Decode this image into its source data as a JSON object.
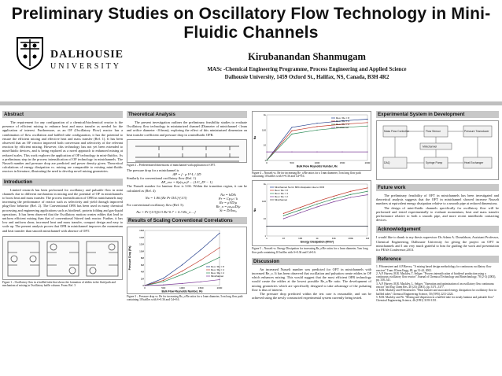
{
  "header": {
    "title": "Preliminary Studies on Oscillatory Flow Technology in Mini-Fluidic Channels",
    "logo_name": "DALHOUSIE",
    "logo_sub": "UNIVERSITY",
    "author": "Kirubanandan Shanmugam",
    "affiliation1": "MASc -Chemical Engineering Programme, Process Engineering and Applied Science",
    "affiliation2": "Dalhousie University, 1459 Oxford St., Halifax, NS, Canada, B3H 4R2"
  },
  "abstract": {
    "heading": "Abstract",
    "text": "The requirement for any configuration of a chemical/biochemical reactor is the presence of efficient mixing to enhance heat and mass transfer as needed for the application of interest. Furthermore, as an OF (Oscillatory Flow) reactor has a combination of flow oscillation and baffled tube configuration, it has the potential to ensure the efficient mixing and effective heat and mass transfer (Ref. 1). It has been observed that an OF reactor improved both conversion and selectivity of the relevant reaction by efficient mixing. However, this technology has not yet been extended to mini-fluidic devices, and is being explored as a novel approach to enhanced mixing at reduced scales. This work explores the application of OF technology in mini-fluidics. As a preliminary step in the process intensification of OF technology in minichannels. The Nusselt number and pressure drop are predicted and power density given. Theoretical calculations of energy dissipation vs. mixing are comparable to existing mini-fluidic reactors in literature, illustrating the need to develop novel mixing geometries."
  },
  "introduction": {
    "heading": "Introduction",
    "text": "Limited research has been performed for oscillatory and pulsatile flow in mini channels due to different mechanism in mixing and the potential of OF in minichannels to boost heat and mass transfer. The process intensification of OFR in minichannels may increasing the performance of reactor such as selectivity and yield through improved plug-flow behavior (Ref. 2). The Conventional OFR has been used in many chemical processing and engineering applications such as biodiesel, protein folding and gas-liquid operations. It has been observed that the Oscillatory motion creates eddies that lead to uniform efficient mixing than that of conventional Stirred tank reactor. Further, it has low and uniform shear, increased heat and mass transfer, compact design and easy to scale up. The present analysis proves that OFR in minichannel improves the momentum and heat transfer than smooth minichannel with absence of OFT.",
    "figure_caption": "Figure 1 – Oscillatory flow in a baffled tube that shows the formation of eddies in the fluid path and mechanism of mixing in Oscillatory baffle column. From: Ref. 3"
  },
  "theory": {
    "heading": "Theoretical Analysis",
    "text": "The present investigation outlines the preliminary feasibility studies to evaluate Oscillatory flow technology in miniaturized channel (Diameter of minichannel <1mm and orifice diameter <0.6mm), exploring the effect of this miniaturized dimension on heat transfer coefficient and pressure drop in a minifluidic OFR.",
    "figure_caption": "Figure 2 – Predetermined dimensions of minichannel with application of OFT.",
    "pressure_text": "The pressure drop for a minichannel is",
    "similarity_text": "Similarly for conventional oscillatory flow (Ref. 1)",
    "nusselt_text": "The Nusselt number for laminar flow is 3.66. Within the transition region, it can be calculated as (Ref. 4)",
    "conv_text": "For conventional oscillatory flow (Ref. 5).",
    "eq1": "ΔP = f · ρ·V²·L / 2D",
    "eq2": "ΔP_osc = 8ρ(x₀ω)² ... (1/C_D² − 1)",
    "eq3": "Nu = 1.86 (Re Pr D/L)^(1/3)",
    "eq4": "Nu = Pr^(1/3)[0.3 Re^0.7 + 0.3 Re_o ...]",
    "side_eqs": [
      "Nu = hD/k",
      "Pr = Cp μ / k",
      "Re = ρVD/μ",
      "Re_o = ρx₀ωD/μ",
      "St = D/4πx₀"
    ]
  },
  "results_conv": {
    "heading": "Results of Scaling Conventional Correlations",
    "figure_caption": "Figure 3 – Pressure drop vs. Re for increasing Re_o/Re ratios for a 1mm diameter, 5cm long flow path containing 10 baffles with S=0.36 and Cd=0.6."
  },
  "fig4": {
    "figure_caption": "Figure 4 – Nusselt vs. Re for increasing Re_o/Re ratios for a 1mm diameter, 5cm long flow path containing 10 baffles with S=0.36 and Cd=0.6."
  },
  "fig5": {
    "figure_caption": "Figure 5 – Nusselt vs. Energy Dissipation for increasing Re_o/Re ratios for a 1mm diameter, 5cm long flow path containing 10 baffles with S=0.36 and Cd=0.6."
  },
  "discussion": {
    "heading": "Discussion",
    "text1": "An increased Nusselt number was predicted for OFT in minichannels with increased Re_o. It has been observed that oscillation and pulsation create eddies in OF which enhances mixing. This would suggest that the most efficient OFR technology would create the eddies at the lowest possible Re_o/Re ratio. The development of mixing geometries which are specifically designed to take advantage of the pulsating flow is thus of interest.",
    "text2": "The pressure drop predicted within the test case is reasonable, and can be achieved using the newly constructed experimental system currently being tested."
  },
  "experimental": {
    "heading": "Experimental System in Development",
    "labels": [
      "Mass Flow Controller",
      "Flow Sensor",
      "Pressure Transducer",
      "DAQ",
      "Syringe Pump",
      "Heat Exchanger",
      "Minichannel"
    ]
  },
  "future": {
    "heading": "Future work",
    "text1": "The preliminary feasibility of OFT in minichannels has been investigated and theoretical analysis suggests that the OFT in minichannel showed increase Nusselt numbers at equivalent energy dissipation relative to a smooth pipe at reduced dimensions.",
    "text2": "The design of mini-fluidic channels specifically for oscillatory flow will be performed and tested experimentally to evaluate momentum, heat and mass transfer performance relative to both a smooth pipe, and more recent minifluidic contacting devices."
  },
  "acknowledgement": {
    "heading": "Acknowledgement",
    "text": "I would like to thank to my thesis supervisor Dr.Adam A. Donaldson, Assistant Professor, Chemical Engineering, Dalhousie University for giving the project on OFT in minichannels and I am very much grateful to him for guiding the work and presentation for PEAS Conference,2013."
  },
  "references": {
    "heading": "Reference",
    "items": [
      "1. P.Stonestreet and A.P.Harvey, \"A mixing based design methodology for continuous oscillatory flow reactors\" Trans IChem Engg, 80, pp 31-44, 2002.",
      "2. A.P. Harvey, M.R. Mackley, T. Seliger. \"Process intensification of biodiesel production using a continuous oscillatory flow reactor\" Journal of Chemical Technology and Biotechnology, 78 (2-3) (2003), pp. 338–341.",
      "3. A.P. Harvey, M.R. Mackley, L. Seliger. \"Operation and optimisation of an oscillatory flow continuous reactor\" Ind Eng Chem Res, 40 (23) (2001), pp. 5371–5377.",
      "4. M.R. Mackley and P.Stonestreet. \"Heat transfer and associated energy dissipation for oscillatory flow in baffled tubes\" Chemical Engineering Science, 50 (1995) 2211-2224.",
      "5. M.R. Mackley and Ni. \"Mixing and dispersion in a baffled tube for steady laminar and pulsatile flow\" Chemical Engineering Science, 46 (1991) 3139-3151."
    ]
  },
  "chart_data": [
    {
      "type": "line",
      "xlabel": "Bulk Flow Reynolds Number, Re",
      "ylabel": "Pressure Drop (Pa)",
      "x": [
        0,
        500,
        1000,
        1500,
        2000
      ],
      "xlim": [
        0,
        2000
      ],
      "ylim": [
        0,
        16000000
      ],
      "yticks": [
        0,
        2000000,
        4000000,
        6000000,
        8000000,
        10000000,
        12000000,
        14000000,
        16000000
      ],
      "legend_position": "right",
      "series": [
        {
          "name": "Reo / Re = 8",
          "values": [
            0,
            2100000,
            6000000,
            10400000,
            15200000
          ]
        },
        {
          "name": "Reo / Re = 4",
          "values": [
            0,
            1500000,
            4200000,
            7400000,
            11000000
          ]
        },
        {
          "name": "Reo / Re = 2",
          "values": [
            0,
            1100000,
            3200000,
            5600000,
            8200000
          ]
        },
        {
          "name": "Minichannel",
          "values": [
            0,
            200000,
            600000,
            1100000,
            1700000
          ]
        }
      ]
    },
    {
      "type": "line",
      "xlabel": "Bulk Flow Reynolds Number, Re",
      "ylabel": "Nu",
      "x": [
        0,
        500,
        1000,
        1500,
        2000
      ],
      "xlim": [
        0,
        2000
      ],
      "ylim": [
        1,
        1000
      ],
      "log_y": true,
      "legend_position": "top-right",
      "series": [
        {
          "name": "Reo / Re = 8",
          "values": [
            1,
            150,
            280,
            400,
            520
          ]
        },
        {
          "name": "Reo / Re = 4",
          "values": [
            1,
            90,
            170,
            240,
            310
          ]
        },
        {
          "name": "Reo / Re = 2",
          "values": [
            1,
            55,
            100,
            145,
            185
          ]
        },
        {
          "name": "Minichannel",
          "values": [
            3.66,
            3.66,
            3.66,
            3.66,
            3.66
          ]
        }
      ]
    },
    {
      "type": "line",
      "xlabel": "Energy Dissipation (W/m³)",
      "ylabel": "Nu",
      "log_x": true,
      "log_y": true,
      "xlim": [
        1,
        1000000
      ],
      "ylim": [
        1,
        1000
      ],
      "legend_position": "top-left",
      "series": [
        {
          "name": "Minichannel Nu for 80% dissipation due to OFR",
          "x": [
            1,
            1000000
          ],
          "values": [
            3.66,
            3.66
          ]
        },
        {
          "name": "Reo / Re = 8",
          "x": [
            10,
            100,
            1000,
            10000,
            100000,
            1000000
          ],
          "values": [
            20,
            45,
            100,
            200,
            380,
            600
          ]
        },
        {
          "name": "Reo / Re = 4",
          "x": [
            10,
            100,
            1000,
            10000,
            100000,
            1000000
          ],
          "values": [
            15,
            32,
            70,
            140,
            250,
            380
          ]
        },
        {
          "name": "Reo / Re = 2",
          "x": [
            10,
            100,
            1000,
            10000,
            100000,
            1000000
          ],
          "values": [
            10,
            22,
            48,
            95,
            170,
            240
          ]
        },
        {
          "name": "Minichannel",
          "x": [
            1,
            1000000
          ],
          "values": [
            3.66,
            3.66
          ]
        }
      ]
    }
  ],
  "colors": {
    "header_bar": "#c8c8c8",
    "rule": "#bfbfbf",
    "series": [
      "#1f3b8a",
      "#c0392b",
      "#2e8b57",
      "#7d3c98",
      "#444444"
    ]
  }
}
